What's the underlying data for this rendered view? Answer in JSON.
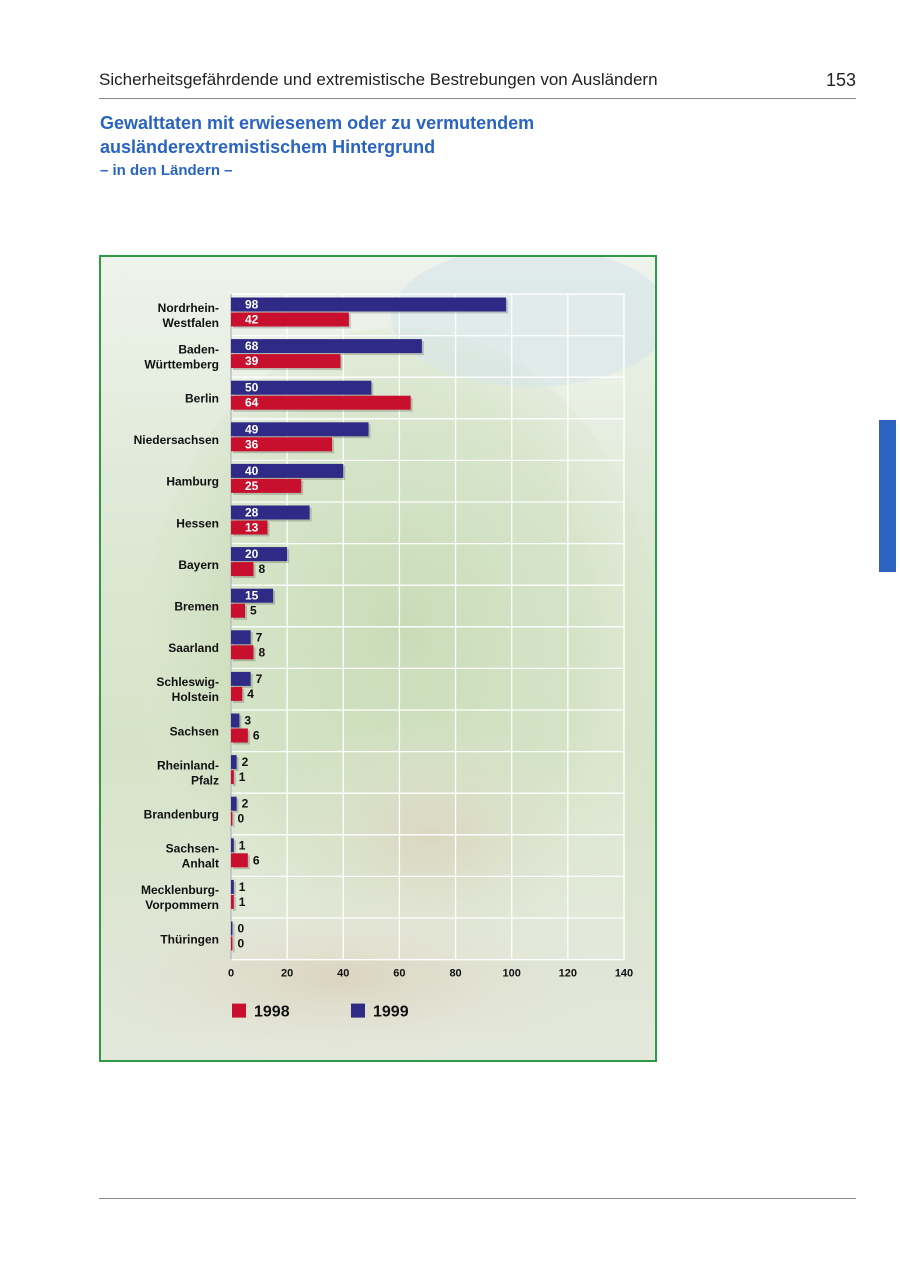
{
  "header": {
    "running_title": "Sicherheitsgefährdende und extremistische Bestrebungen von Ausländern",
    "page_number": "153"
  },
  "heading": {
    "title_line1": "Gewalttaten mit erwiesenem oder zu vermutendem",
    "title_line2": "ausländerextremistischem Hintergrund",
    "subtitle": "– in den Ländern –"
  },
  "colors": {
    "accent_blue": "#2a64c0",
    "series_1998": "#c8102e",
    "series_1999": "#2e2a86",
    "frame_green": "#2e9a45"
  },
  "chart_data": {
    "type": "bar",
    "orientation": "horizontal",
    "categories": [
      [
        "Nordrhein-",
        "Westfalen"
      ],
      [
        "Baden-",
        "Württemberg"
      ],
      [
        "Berlin"
      ],
      [
        "Niedersachsen"
      ],
      [
        "Hamburg"
      ],
      [
        "Hessen"
      ],
      [
        "Bayern"
      ],
      [
        "Bremen"
      ],
      [
        "Saarland"
      ],
      [
        "Schleswig-",
        "Holstein"
      ],
      [
        "Sachsen"
      ],
      [
        "Rheinland-",
        "Pfalz"
      ],
      [
        "Brandenburg"
      ],
      [
        "Sachsen-",
        "Anhalt"
      ],
      [
        "Mecklenburg-",
        "Vorpommern"
      ],
      [
        "Thüringen"
      ]
    ],
    "series": [
      {
        "name": "1999",
        "values": [
          98,
          68,
          50,
          49,
          40,
          28,
          20,
          15,
          7,
          7,
          3,
          2,
          2,
          1,
          1,
          0
        ]
      },
      {
        "name": "1998",
        "values": [
          42,
          39,
          64,
          36,
          25,
          13,
          8,
          5,
          8,
          4,
          6,
          1,
          0,
          6,
          1,
          0
        ]
      }
    ],
    "xlim": [
      0,
      140
    ],
    "xticks": [
      "0",
      "20",
      "40",
      "60",
      "80",
      "100",
      "120",
      "140"
    ],
    "grid": true,
    "legend": [
      {
        "name": "1998"
      },
      {
        "name": "1999"
      }
    ],
    "legend_position": "bottom"
  }
}
